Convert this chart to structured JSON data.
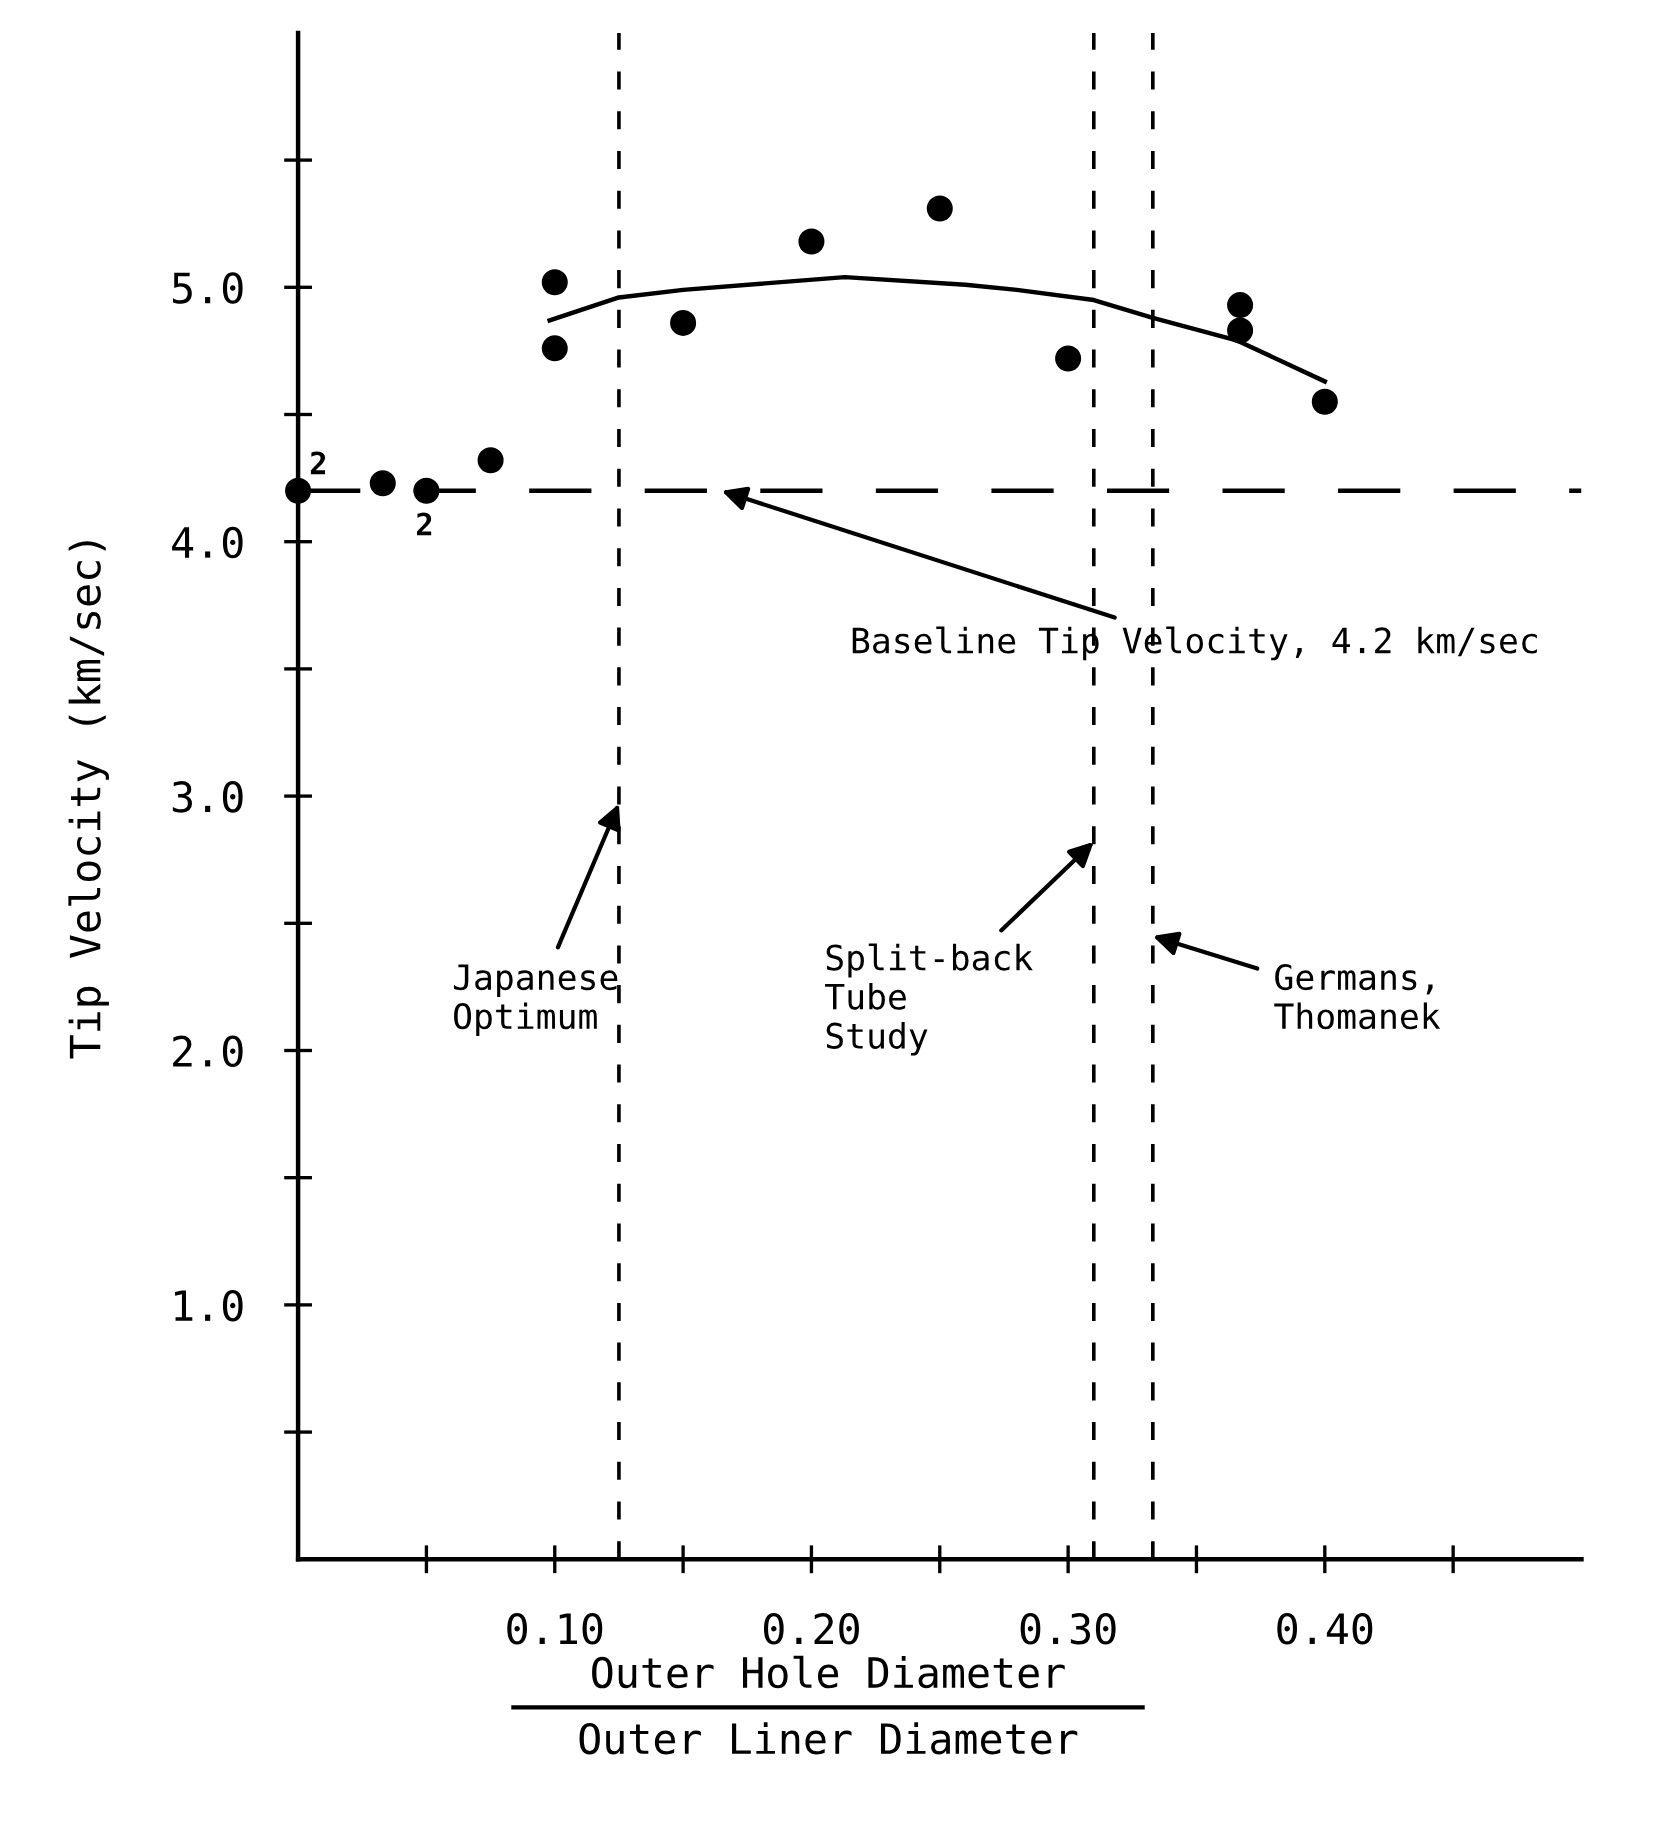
{
  "chart_data": {
    "type": "scatter",
    "ylabel": "Tip Velocity (km/sec)",
    "xlabel": "Outer Hole Diameter\nOuter Liner Diameter",
    "xlim": [
      0,
      0.5
    ],
    "ylim": [
      0,
      6
    ],
    "xticks": [
      {
        "value": 0.05,
        "label": null
      },
      {
        "value": 0.1,
        "label": "0.10"
      },
      {
        "value": 0.15,
        "label": null
      },
      {
        "value": 0.2,
        "label": "0.20"
      },
      {
        "value": 0.25,
        "label": null
      },
      {
        "value": 0.3,
        "label": "0.30"
      },
      {
        "value": 0.35,
        "label": null
      },
      {
        "value": 0.4,
        "label": "0.40"
      },
      {
        "value": 0.45,
        "label": null
      }
    ],
    "yticks": [
      {
        "value": 0.5,
        "label": null
      },
      {
        "value": 1.0,
        "label": "1.0"
      },
      {
        "value": 1.5,
        "label": null
      },
      {
        "value": 2.0,
        "label": "2.0"
      },
      {
        "value": 2.5,
        "label": null
      },
      {
        "value": 3.0,
        "label": "3.0"
      },
      {
        "value": 3.5,
        "label": null
      },
      {
        "value": 4.0,
        "label": "4.0"
      },
      {
        "value": 4.5,
        "label": null
      },
      {
        "value": 5.0,
        "label": "5.0"
      },
      {
        "value": 5.5,
        "label": null
      }
    ],
    "grid": false,
    "marker": "circle",
    "series": [
      {
        "color": "#000000",
        "x": [
          0,
          0.033,
          0.05,
          0.075,
          0.1,
          0.1,
          0.15,
          0.2,
          0.25,
          0.3,
          0.367,
          0.367,
          0.4
        ],
        "values": [
          4.2,
          4.23,
          4.2,
          4.32,
          5.02,
          4.76,
          4.86,
          5.18,
          5.31,
          4.72,
          4.93,
          4.83,
          4.55
        ]
      },
      {
        "type": "line",
        "color": "#000000",
        "line_style": "solid",
        "marker": "none",
        "x": [
          0.098,
          0.125,
          0.15,
          0.213,
          0.26,
          0.28,
          0.31,
          0.333,
          0.366,
          0.4
        ],
        "values": [
          4.87,
          4.96,
          4.99,
          5.04,
          5.01,
          4.99,
          4.95,
          4.88,
          4.79,
          4.63
        ]
      }
    ],
    "ref_lines": [
      {
        "axis": "y",
        "value": 4.2,
        "label": "Baseline Tip Velocity, 4.2 km/sec",
        "line_style": "dashed",
        "color": "#000000"
      },
      {
        "axis": "x",
        "value": 0.125,
        "label": "Japanese\nOptimum",
        "line_style": "dashed",
        "color": "#000000"
      },
      {
        "axis": "x",
        "value": 0.31,
        "label": "Split-back\nTube\nStudy",
        "line_style": "dashed",
        "color": "#000000"
      },
      {
        "axis": "x",
        "value": 0.333,
        "label": "Germans,\nThomanek",
        "line_style": "dashed",
        "color": "#000000"
      }
    ],
    "annotations": [
      {
        "text": "2",
        "x": 0,
        "y": 4.2
      },
      {
        "text": "2",
        "x": 0.05,
        "y": 4.2
      }
    ]
  }
}
